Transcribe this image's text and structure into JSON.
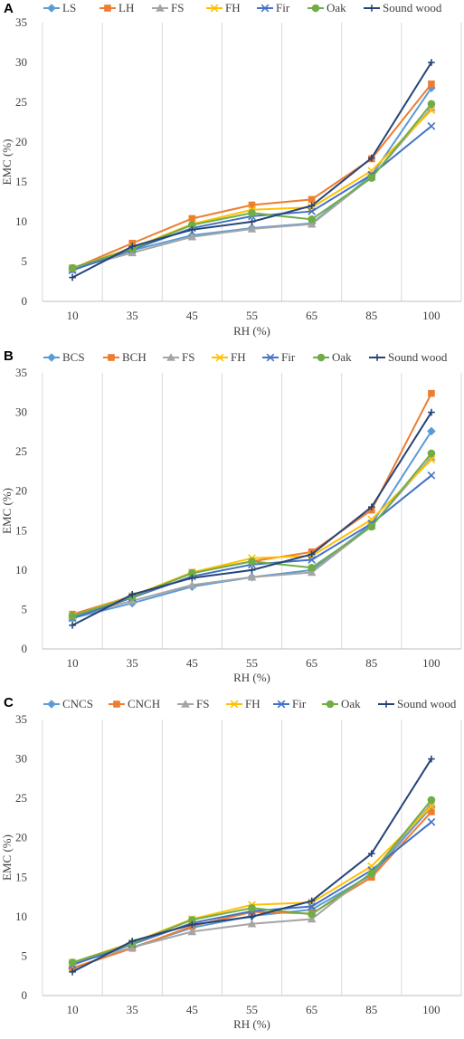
{
  "chart_data": [
    {
      "type": "line",
      "panel_label": "A",
      "xlabel": "RH (%)",
      "ylabel": "EMC (%)",
      "ylim": [
        0,
        35
      ],
      "yticks": [
        0,
        5,
        10,
        15,
        20,
        25,
        30,
        35
      ],
      "grid": "vertical",
      "legend": "top",
      "categories": [
        "10",
        "35",
        "45",
        "55",
        "65",
        "85",
        "100"
      ],
      "series": [
        {
          "name": "LS",
          "color": "#5B9BD5",
          "marker": "diamond",
          "values": [
            4.0,
            6.4,
            8.3,
            9.2,
            9.8,
            15.8,
            26.8
          ]
        },
        {
          "name": "LH",
          "color": "#ED7D31",
          "marker": "square",
          "values": [
            4.1,
            7.3,
            10.4,
            12.1,
            12.8,
            17.9,
            27.3
          ]
        },
        {
          "name": "FS",
          "color": "#A5A5A5",
          "marker": "triangle",
          "values": [
            4.1,
            6.1,
            8.1,
            9.1,
            9.7,
            15.6,
            24.3
          ]
        },
        {
          "name": "FH",
          "color": "#FFC000",
          "marker": "x",
          "values": [
            4.2,
            6.7,
            9.7,
            11.5,
            11.8,
            16.4,
            24.0
          ]
        },
        {
          "name": "Fir",
          "color": "#4472C4",
          "marker": "x",
          "values": [
            3.9,
            6.5,
            9.2,
            10.7,
            11.3,
            15.9,
            22.0
          ]
        },
        {
          "name": "Oak",
          "color": "#70AD47",
          "marker": "circle",
          "values": [
            4.2,
            6.6,
            9.6,
            11.1,
            10.3,
            15.5,
            24.8
          ]
        },
        {
          "name": "Sound wood",
          "color": "#264478",
          "marker": "plus",
          "values": [
            3.0,
            6.9,
            9.0,
            10.0,
            12.0,
            18.0,
            30.0
          ]
        }
      ]
    },
    {
      "type": "line",
      "panel_label": "B",
      "xlabel": "RH (%)",
      "ylabel": "EMC (%)",
      "ylim": [
        0,
        35
      ],
      "yticks": [
        0,
        5,
        10,
        15,
        20,
        25,
        30,
        35
      ],
      "grid": "vertical",
      "legend": "top",
      "categories": [
        "10",
        "35",
        "45",
        "55",
        "65",
        "85",
        "100"
      ],
      "series": [
        {
          "name": "BCS",
          "color": "#5B9BD5",
          "marker": "diamond",
          "values": [
            3.9,
            5.8,
            7.9,
            9.1,
            10.0,
            15.8,
            27.6
          ]
        },
        {
          "name": "BCH",
          "color": "#ED7D31",
          "marker": "square",
          "values": [
            4.4,
            6.7,
            9.7,
            11.1,
            12.3,
            17.6,
            32.4
          ]
        },
        {
          "name": "FS",
          "color": "#A5A5A5",
          "marker": "triangle",
          "values": [
            4.1,
            6.1,
            8.1,
            9.1,
            9.7,
            15.6,
            24.3
          ]
        },
        {
          "name": "FH",
          "color": "#FFC000",
          "marker": "x",
          "values": [
            4.2,
            6.7,
            9.7,
            11.5,
            11.8,
            16.4,
            24.0
          ]
        },
        {
          "name": "Fir",
          "color": "#4472C4",
          "marker": "x",
          "values": [
            3.9,
            6.5,
            9.2,
            10.7,
            11.3,
            15.9,
            22.0
          ]
        },
        {
          "name": "Oak",
          "color": "#70AD47",
          "marker": "circle",
          "values": [
            4.2,
            6.6,
            9.6,
            11.1,
            10.3,
            15.5,
            24.8
          ]
        },
        {
          "name": "Sound wood",
          "color": "#264478",
          "marker": "plus",
          "values": [
            3.0,
            6.9,
            9.0,
            10.0,
            12.0,
            18.0,
            30.0
          ]
        }
      ]
    },
    {
      "type": "line",
      "panel_label": "C",
      "xlabel": "RH (%)",
      "ylabel": "EMC (%)",
      "ylim": [
        0,
        35
      ],
      "yticks": [
        0,
        5,
        10,
        15,
        20,
        25,
        30,
        35
      ],
      "grid": "vertical",
      "legend": "top",
      "categories": [
        "10",
        "35",
        "45",
        "55",
        "65",
        "85",
        "100"
      ],
      "series": [
        {
          "name": "CNCS",
          "color": "#5B9BD5",
          "marker": "diamond",
          "values": [
            3.4,
            6.1,
            8.6,
            10.1,
            10.9,
            15.3,
            23.9
          ]
        },
        {
          "name": "CNCH",
          "color": "#ED7D31",
          "marker": "square",
          "values": [
            3.5,
            6.0,
            8.8,
            10.6,
            10.4,
            15.0,
            23.3
          ]
        },
        {
          "name": "FS",
          "color": "#A5A5A5",
          "marker": "triangle",
          "values": [
            4.1,
            6.1,
            8.1,
            9.1,
            9.7,
            15.6,
            24.3
          ]
        },
        {
          "name": "FH",
          "color": "#FFC000",
          "marker": "x",
          "values": [
            4.2,
            6.7,
            9.7,
            11.5,
            11.8,
            16.4,
            24.0
          ]
        },
        {
          "name": "Fir",
          "color": "#4472C4",
          "marker": "x",
          "values": [
            3.9,
            6.5,
            9.2,
            10.7,
            11.3,
            15.9,
            22.0
          ]
        },
        {
          "name": "Oak",
          "color": "#70AD47",
          "marker": "circle",
          "values": [
            4.2,
            6.6,
            9.6,
            11.1,
            10.3,
            15.5,
            24.8
          ]
        },
        {
          "name": "Sound wood",
          "color": "#264478",
          "marker": "plus",
          "values": [
            3.0,
            6.9,
            9.0,
            10.0,
            12.0,
            18.0,
            30.0
          ]
        }
      ]
    }
  ]
}
